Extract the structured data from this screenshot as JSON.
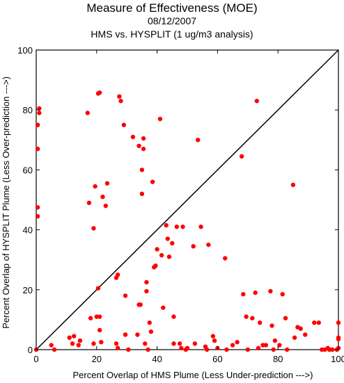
{
  "chart_data": {
    "type": "scatter",
    "title": "Measure of Effectiveness (MOE)",
    "subtitle": "08/12/2007",
    "subtitle2": "HMS vs. HYSPLIT  (1 ug/m3 analysis)",
    "xlabel": "Percent Overlap of HMS Plume (Less Under-prediction --->)",
    "ylabel": "Percent Overlap of HYSPLIT Plume (Less Over-prediction --->)",
    "xlim": [
      0,
      100
    ],
    "ylim": [
      0,
      100
    ],
    "xticks": [
      "0",
      "20",
      "40",
      "60",
      "80",
      "100"
    ],
    "yticks": [
      "0",
      "20",
      "40",
      "60",
      "80",
      "100"
    ],
    "grid": false,
    "marker_color": "#ff0000",
    "diagonal_line": true,
    "points": [
      [
        0.5,
        75
      ],
      [
        0.5,
        67
      ],
      [
        1,
        80.5
      ],
      [
        1,
        79
      ],
      [
        0.5,
        47.5
      ],
      [
        0.5,
        44.5
      ],
      [
        0,
        0
      ],
      [
        5,
        1.5
      ],
      [
        6,
        0
      ],
      [
        11,
        4
      ],
      [
        12,
        2
      ],
      [
        12.5,
        4.5
      ],
      [
        14,
        1.5
      ],
      [
        14.5,
        3
      ],
      [
        17,
        79
      ],
      [
        17.5,
        49
      ],
      [
        18,
        10.5
      ],
      [
        19,
        40.5
      ],
      [
        19,
        2
      ],
      [
        19.5,
        54.5
      ],
      [
        20,
        11
      ],
      [
        20.5,
        20.5
      ],
      [
        20.5,
        85.5
      ],
      [
        21,
        85.8
      ],
      [
        21,
        11
      ],
      [
        21,
        6.5
      ],
      [
        21.5,
        2.5
      ],
      [
        22,
        51
      ],
      [
        23,
        48
      ],
      [
        23.5,
        55.5
      ],
      [
        26.5,
        2
      ],
      [
        26.5,
        24
      ],
      [
        27,
        25
      ],
      [
        27,
        0.5
      ],
      [
        27.5,
        84.5
      ],
      [
        28,
        83
      ],
      [
        29,
        75
      ],
      [
        29.5,
        18
      ],
      [
        29.5,
        5
      ],
      [
        30.5,
        0
      ],
      [
        32,
        71
      ],
      [
        33.5,
        5
      ],
      [
        34,
        68
      ],
      [
        34,
        15
      ],
      [
        34.5,
        15
      ],
      [
        35,
        60
      ],
      [
        35,
        52
      ],
      [
        35.5,
        67
      ],
      [
        35.5,
        70.5
      ],
      [
        36,
        2
      ],
      [
        36.5,
        22.5
      ],
      [
        36.5,
        19.5
      ],
      [
        37,
        0
      ],
      [
        37.5,
        9
      ],
      [
        38,
        6
      ],
      [
        38.5,
        56
      ],
      [
        39,
        27.5
      ],
      [
        39.5,
        28
      ],
      [
        40,
        33.5
      ],
      [
        41,
        77
      ],
      [
        41.5,
        31.5
      ],
      [
        42,
        14
      ],
      [
        43,
        41.5
      ],
      [
        43.5,
        37
      ],
      [
        44,
        31
      ],
      [
        45,
        35.5
      ],
      [
        45.5,
        11
      ],
      [
        45.5,
        2
      ],
      [
        46.5,
        41
      ],
      [
        47.5,
        2
      ],
      [
        48,
        0.5
      ],
      [
        48.5,
        41
      ],
      [
        49.5,
        0
      ],
      [
        50,
        0.5
      ],
      [
        52,
        34.5
      ],
      [
        52.5,
        2
      ],
      [
        53.5,
        70
      ],
      [
        54.5,
        41
      ],
      [
        56,
        1
      ],
      [
        56.5,
        0
      ],
      [
        57,
        35
      ],
      [
        58.5,
        4.5
      ],
      [
        59,
        3
      ],
      [
        60,
        0.5
      ],
      [
        62.5,
        30.5
      ],
      [
        63,
        0
      ],
      [
        65,
        1.5
      ],
      [
        66.5,
        2.5
      ],
      [
        68,
        64.5
      ],
      [
        68.5,
        18.5
      ],
      [
        69.5,
        11
      ],
      [
        70,
        0
      ],
      [
        71.5,
        10.5
      ],
      [
        72.5,
        19
      ],
      [
        73,
        83
      ],
      [
        73.5,
        0.5
      ],
      [
        74,
        9
      ],
      [
        75,
        1.5
      ],
      [
        76,
        1.5
      ],
      [
        77.5,
        19.5
      ],
      [
        78,
        8
      ],
      [
        78.5,
        0
      ],
      [
        79,
        3
      ],
      [
        80.5,
        1.5
      ],
      [
        81.5,
        18.5
      ],
      [
        82.5,
        10.5
      ],
      [
        83,
        0
      ],
      [
        85,
        55
      ],
      [
        85.5,
        4
      ],
      [
        86.5,
        7.5
      ],
      [
        87.5,
        7
      ],
      [
        89,
        5
      ],
      [
        92,
        9
      ],
      [
        93.5,
        9
      ],
      [
        94.5,
        0
      ],
      [
        95.5,
        0
      ],
      [
        96.5,
        0.5
      ],
      [
        97,
        0
      ],
      [
        98,
        0
      ],
      [
        99.5,
        0
      ],
      [
        100,
        4
      ],
      [
        100,
        3.5
      ],
      [
        100,
        9
      ],
      [
        100,
        0.5
      ]
    ]
  }
}
